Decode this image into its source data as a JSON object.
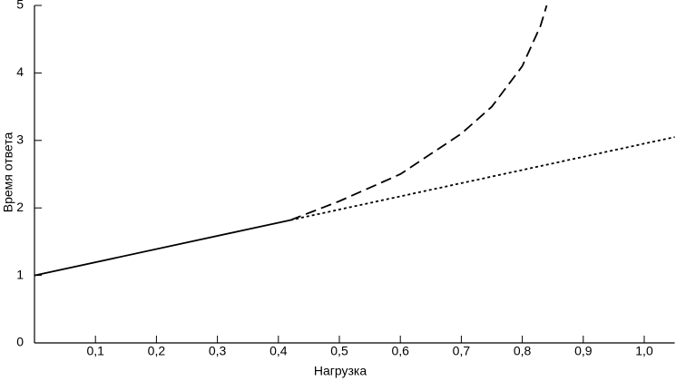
{
  "chart_data": {
    "type": "line",
    "x_label": "Нагрузка",
    "y_label": "Время ответа",
    "xlim": [
      0,
      1.05
    ],
    "ylim": [
      0,
      5
    ],
    "xticks": [
      {
        "value": 0.1,
        "label": "0,1"
      },
      {
        "value": 0.2,
        "label": "0,2"
      },
      {
        "value": 0.3,
        "label": "0,3"
      },
      {
        "value": 0.4,
        "label": "0,4"
      },
      {
        "value": 0.5,
        "label": "0,5"
      },
      {
        "value": 0.6,
        "label": "0,6"
      },
      {
        "value": 0.7,
        "label": "0,7"
      },
      {
        "value": 0.8,
        "label": "0,8"
      },
      {
        "value": 0.9,
        "label": "0,9"
      },
      {
        "value": 1.0,
        "label": "1,0"
      }
    ],
    "yticks": [
      0,
      1,
      2,
      3,
      4,
      5
    ],
    "series": [
      {
        "color": "#000000",
        "dash": "solid",
        "x": [
          0,
          0.42
        ],
        "values": [
          1.0,
          1.82
        ]
      },
      {
        "color": "#000000",
        "dash": "dotted",
        "x": [
          0.42,
          1.05
        ],
        "values": [
          1.82,
          3.05
        ]
      },
      {
        "color": "#000000",
        "dash": "dashed",
        "x": [
          0.42,
          0.5,
          0.6,
          0.7,
          0.75,
          0.8,
          0.83,
          0.84
        ],
        "values": [
          1.82,
          2.1,
          2.5,
          3.1,
          3.5,
          4.1,
          4.7,
          5.0
        ]
      }
    ]
  }
}
